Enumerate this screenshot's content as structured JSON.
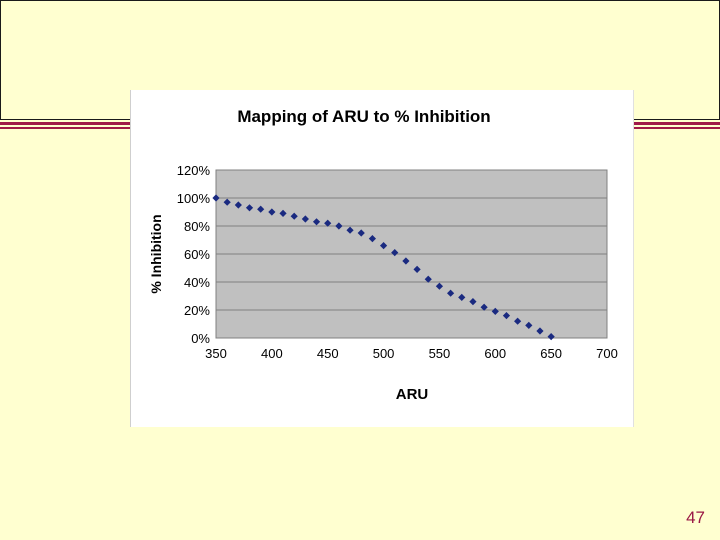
{
  "slide": {
    "number": "47"
  },
  "chart_data": {
    "type": "scatter",
    "title": "Mapping of ARU to % Inhibition",
    "xlabel": "ARU",
    "ylabel": "% Inhibition",
    "xlim": [
      350,
      700
    ],
    "ylim": [
      0,
      1.2
    ],
    "x_ticks": [
      "350",
      "400",
      "450",
      "500",
      "550",
      "600",
      "650",
      "700"
    ],
    "y_ticks": [
      "0%",
      "20%",
      "40%",
      "60%",
      "80%",
      "100%",
      "120%"
    ],
    "grid": "horizontal",
    "plot_background": "#c0c0c0",
    "marker_color": "#1a2a80",
    "marker": "diamond",
    "series": [
      {
        "x": [
          350,
          360,
          370,
          380,
          390,
          400,
          410,
          420,
          430,
          440,
          450,
          460,
          470,
          480,
          490,
          500,
          510,
          520,
          530,
          540,
          550,
          560,
          570,
          580,
          590,
          600,
          610,
          620,
          630,
          640,
          650
        ],
        "y": [
          1.0,
          0.97,
          0.95,
          0.93,
          0.92,
          0.9,
          0.89,
          0.87,
          0.85,
          0.83,
          0.82,
          0.8,
          0.77,
          0.75,
          0.71,
          0.66,
          0.61,
          0.55,
          0.49,
          0.42,
          0.37,
          0.32,
          0.29,
          0.26,
          0.22,
          0.19,
          0.16,
          0.12,
          0.09,
          0.05,
          0.01
        ]
      }
    ]
  }
}
